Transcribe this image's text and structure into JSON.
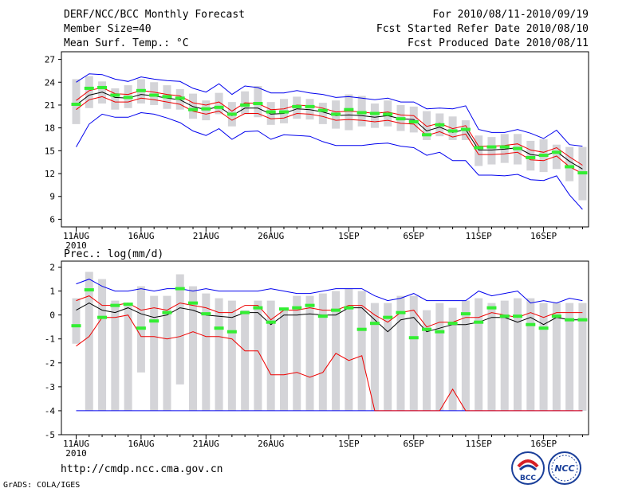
{
  "header": {
    "title": "DERF/NCC/BCC Monthly Forecast",
    "member_size": "Member Size=40",
    "variable": "Mean Surf. Temp.: °C",
    "period": "For 2010/08/11-2010/09/19",
    "fcst_started": "Fcst Started Refer Date 2010/08/10",
    "fcst_produced": "Fcst Produced Date 2010/08/11"
  },
  "footer": {
    "url": "http://cmdp.ncc.cma.gov.cn",
    "grads": "GrADS: COLA/IGES",
    "logo_left_text": "BCC",
    "logo_right_text": "NCC"
  },
  "colors": {
    "box": "#d4d4d8",
    "green": "#33ee33",
    "envelope": "#0000ee",
    "quartile": "#ee0000",
    "mean": "#000000"
  },
  "chart_data": [
    {
      "type": "box-plume",
      "title": "Mean Surf. Temp.: °C",
      "ylim": [
        5,
        28
      ],
      "yticks": [
        6,
        9,
        12,
        15,
        18,
        21,
        24,
        27
      ],
      "x_start_label": "2010",
      "xtick_labels": [
        {
          "day": 1,
          "label": "11AUG"
        },
        {
          "day": 6,
          "label": "16AUG"
        },
        {
          "day": 11,
          "label": "21AUG"
        },
        {
          "day": 16,
          "label": "26AUG"
        },
        {
          "day": 22,
          "label": "1SEP"
        },
        {
          "day": 27,
          "label": "6SEP"
        },
        {
          "day": 32,
          "label": "11SEP"
        },
        {
          "day": 37,
          "label": "16SEP"
        }
      ],
      "days": [
        1,
        2,
        3,
        4,
        5,
        6,
        7,
        8,
        9,
        10,
        11,
        12,
        13,
        14,
        15,
        16,
        17,
        18,
        19,
        20,
        21,
        22,
        23,
        24,
        25,
        26,
        27,
        28,
        29,
        30,
        31,
        32,
        33,
        34,
        35,
        36,
        37,
        38,
        39,
        40
      ],
      "box_low": [
        18.5,
        20.6,
        21.2,
        20.4,
        20.6,
        21.2,
        21.0,
        20.5,
        20.4,
        19.2,
        19.0,
        19.8,
        18.2,
        19.8,
        19.4,
        18.4,
        18.6,
        19.2,
        19.1,
        18.5,
        17.9,
        17.7,
        18.2,
        18.0,
        18.2,
        17.6,
        17.4,
        16.4,
        16.9,
        16.4,
        16.4,
        13.0,
        13.2,
        13.4,
        13.2,
        12.4,
        12.2,
        12.6,
        11.0,
        8.5
      ],
      "box_high": [
        24.4,
        24.8,
        24.1,
        23.2,
        23.6,
        24.4,
        24.0,
        23.6,
        23.1,
        22.5,
        21.6,
        22.6,
        21.4,
        22.8,
        23.5,
        21.4,
        21.8,
        22.1,
        21.8,
        21.3,
        21.6,
        22.4,
        22.2,
        21.2,
        21.6,
        21.0,
        20.8,
        20.2,
        19.9,
        19.5,
        19.0,
        17.0,
        16.8,
        17.2,
        17.2,
        16.3,
        16.5,
        15.8,
        15.5,
        15.5
      ],
      "green": [
        21.1,
        23.2,
        23.3,
        22.3,
        22.0,
        22.9,
        22.3,
        22.1,
        21.9,
        20.4,
        20.5,
        20.7,
        19.8,
        21.0,
        21.2,
        20.1,
        20.1,
        20.8,
        20.8,
        20.3,
        19.8,
        20.4,
        20.0,
        19.9,
        19.8,
        19.2,
        18.8,
        17.1,
        18.4,
        17.6,
        17.8,
        15.4,
        15.5,
        15.5,
        15.3,
        14.1,
        14.4,
        14.8,
        12.9,
        12.1
      ],
      "mean": [
        21.0,
        22.3,
        22.7,
        22.0,
        21.9,
        22.4,
        22.2,
        21.9,
        21.7,
        20.8,
        20.4,
        20.8,
        19.6,
        20.6,
        20.6,
        19.8,
        19.9,
        20.5,
        20.4,
        20.1,
        19.6,
        19.7,
        19.6,
        19.4,
        19.6,
        19.2,
        19.1,
        17.6,
        18.1,
        17.4,
        17.8,
        15.1,
        15.1,
        15.2,
        15.4,
        14.5,
        14.3,
        14.9,
        13.6,
        12.6
      ],
      "q_high": [
        21.6,
        22.9,
        23.3,
        22.5,
        22.4,
        22.9,
        22.7,
        22.4,
        22.2,
        21.3,
        21.0,
        21.4,
        20.2,
        21.3,
        21.2,
        20.4,
        20.5,
        21.0,
        20.9,
        20.6,
        20.1,
        20.2,
        20.1,
        19.9,
        20.1,
        19.7,
        19.6,
        18.2,
        18.6,
        17.9,
        18.3,
        15.6,
        15.6,
        15.7,
        15.9,
        15.1,
        14.8,
        15.4,
        14.2,
        13.1
      ],
      "q_low": [
        20.4,
        21.7,
        22.1,
        21.4,
        21.4,
        21.9,
        21.7,
        21.4,
        21.1,
        20.2,
        19.8,
        20.2,
        19.0,
        19.9,
        19.9,
        19.2,
        19.3,
        19.9,
        19.8,
        19.5,
        19.0,
        19.1,
        19.0,
        18.8,
        19.0,
        18.6,
        18.5,
        17.0,
        17.5,
        16.8,
        17.2,
        14.5,
        14.5,
        14.6,
        14.8,
        13.8,
        13.7,
        14.3,
        12.9,
        12.0
      ],
      "env_high": [
        24.0,
        25.1,
        25.0,
        24.4,
        24.1,
        24.7,
        24.4,
        24.2,
        24.1,
        23.2,
        22.7,
        23.8,
        22.4,
        23.5,
        23.3,
        22.6,
        22.6,
        22.9,
        22.6,
        22.4,
        22.0,
        22.1,
        21.9,
        21.7,
        21.9,
        21.4,
        21.4,
        20.5,
        20.6,
        20.5,
        20.9,
        17.8,
        17.4,
        17.4,
        17.8,
        17.3,
        16.6,
        17.7,
        15.8,
        15.6
      ],
      "env_low": [
        15.5,
        18.5,
        19.8,
        19.4,
        19.4,
        20.0,
        19.8,
        19.3,
        18.7,
        17.6,
        17.0,
        17.9,
        16.5,
        17.5,
        17.6,
        16.5,
        17.1,
        17.0,
        16.9,
        16.2,
        15.7,
        15.7,
        15.7,
        15.9,
        16.0,
        15.6,
        15.4,
        14.4,
        14.8,
        13.7,
        13.7,
        11.8,
        11.8,
        11.7,
        11.9,
        11.2,
        11.1,
        11.7,
        9.2,
        7.3
      ]
    },
    {
      "type": "box-plume",
      "title": "Prec.: log(mm/d)",
      "ylim": [
        -5,
        2.25
      ],
      "yticks": [
        -5,
        -4,
        -3,
        -2,
        -1,
        0,
        1,
        2
      ],
      "x_start_label": "2010",
      "xtick_labels": [
        {
          "day": 1,
          "label": "11AUG"
        },
        {
          "day": 6,
          "label": "16AUG"
        },
        {
          "day": 11,
          "label": "21AUG"
        },
        {
          "day": 16,
          "label": "26AUG"
        },
        {
          "day": 22,
          "label": "1SEP"
        },
        {
          "day": 27,
          "label": "6SEP"
        },
        {
          "day": 32,
          "label": "11SEP"
        },
        {
          "day": 37,
          "label": "16SEP"
        }
      ],
      "days": [
        1,
        2,
        3,
        4,
        5,
        6,
        7,
        8,
        9,
        10,
        11,
        12,
        13,
        14,
        15,
        16,
        17,
        18,
        19,
        20,
        21,
        22,
        23,
        24,
        25,
        26,
        27,
        28,
        29,
        30,
        31,
        32,
        33,
        34,
        35,
        36,
        37,
        38,
        39,
        40
      ],
      "box_low": [
        -1.2,
        -4.0,
        -4.0,
        -4.0,
        -4.0,
        -2.4,
        -4.0,
        -4.0,
        -2.9,
        -4.0,
        -4.0,
        -4.0,
        -4.0,
        -4.0,
        -4.0,
        -4.0,
        -4.0,
        -4.0,
        -4.0,
        -4.0,
        -4.0,
        -4.0,
        -4.0,
        -4.0,
        -4.0,
        -4.0,
        -4.0,
        -4.0,
        -4.0,
        -4.0,
        -4.0,
        -4.0,
        -4.0,
        -4.0,
        -4.0,
        -4.0,
        -4.0,
        -4.0,
        -4.0,
        -4.0
      ],
      "box_high": [
        0.7,
        1.8,
        1.5,
        0.6,
        0.5,
        1.2,
        0.8,
        0.8,
        1.7,
        1.2,
        0.9,
        0.7,
        0.6,
        0.2,
        0.6,
        0.6,
        0.2,
        0.8,
        0.8,
        0.9,
        1.0,
        1.1,
        1.0,
        0.5,
        0.5,
        0.8,
        0.8,
        0.2,
        0.5,
        0.3,
        0.6,
        0.7,
        0.5,
        0.6,
        0.7,
        0.7,
        0.5,
        0.5,
        0.5,
        0.5
      ],
      "green": [
        -0.45,
        1.05,
        -0.1,
        0.4,
        0.45,
        -0.55,
        -0.25,
        0.1,
        1.1,
        0.5,
        0.05,
        -0.55,
        -0.7,
        0.1,
        0.3,
        -0.3,
        0.25,
        0.3,
        0.4,
        -0.05,
        0.2,
        0.3,
        -0.6,
        -0.35,
        -0.1,
        0.1,
        -0.95,
        -0.6,
        -0.7,
        -0.35,
        0.05,
        -0.3,
        0.3,
        -0.05,
        -0.05,
        -0.4,
        -0.55,
        -0.05,
        -0.2,
        -0.2
      ],
      "mean": [
        0.2,
        0.5,
        0.2,
        0.1,
        0.3,
        0.05,
        -0.1,
        0.0,
        0.3,
        0.2,
        0.0,
        -0.05,
        -0.1,
        0.1,
        0.1,
        -0.4,
        0.0,
        0.0,
        0.05,
        0.0,
        0.0,
        0.3,
        0.3,
        -0.2,
        -0.7,
        -0.2,
        -0.1,
        -0.7,
        -0.55,
        -0.4,
        -0.4,
        -0.3,
        -0.1,
        -0.1,
        -0.3,
        -0.1,
        -0.4,
        -0.1,
        -0.2,
        -0.2
      ],
      "q_high": [
        0.6,
        0.8,
        0.4,
        0.4,
        0.5,
        0.2,
        0.3,
        0.2,
        0.5,
        0.4,
        0.3,
        0.1,
        0.1,
        0.4,
        0.4,
        -0.2,
        0.2,
        0.2,
        0.3,
        0.2,
        0.2,
        0.4,
        0.4,
        0.0,
        -0.3,
        0.1,
        0.2,
        -0.5,
        -0.3,
        -0.3,
        -0.1,
        -0.1,
        0.1,
        0.0,
        -0.1,
        0.1,
        -0.1,
        0.1,
        0.1,
        0.1
      ],
      "q_low": [
        -1.3,
        -0.9,
        -0.1,
        -0.1,
        0.0,
        -0.9,
        -0.9,
        -1.0,
        -0.9,
        -0.7,
        -0.9,
        -0.9,
        -1.0,
        -1.5,
        -1.5,
        -2.5,
        -2.5,
        -2.4,
        -2.6,
        -2.4,
        -1.6,
        -1.9,
        -1.7,
        -4.0,
        -4.0,
        -4.0,
        -4.0,
        -4.0,
        -4.0,
        -3.1,
        -4.0,
        -4.0,
        -4.0,
        -4.0,
        -4.0,
        -4.0,
        -4.0,
        -4.0,
        -4.0,
        -4.0
      ],
      "env_high": [
        1.3,
        1.5,
        1.2,
        1.0,
        1.0,
        1.1,
        1.0,
        1.1,
        1.1,
        1.0,
        1.1,
        1.0,
        1.0,
        1.0,
        1.0,
        1.1,
        1.0,
        0.9,
        0.9,
        1.0,
        1.1,
        1.1,
        1.1,
        0.8,
        0.6,
        0.7,
        0.9,
        0.6,
        0.6,
        0.6,
        0.6,
        1.0,
        0.8,
        0.9,
        1.0,
        0.5,
        0.6,
        0.5,
        0.7,
        0.6
      ],
      "env_low": [
        -4.0,
        -4.0,
        -4.0,
        -4.0,
        -4.0,
        -4.0,
        -4.0,
        -4.0,
        -4.0,
        -4.0,
        -4.0,
        -4.0,
        -4.0,
        -4.0,
        -4.0,
        -4.0,
        -4.0,
        -4.0,
        -4.0,
        -4.0,
        -4.0,
        -4.0,
        -4.0,
        -4.0,
        -4.0,
        -4.0,
        -4.0,
        -4.0,
        -4.0,
        -4.0,
        -4.0,
        -4.0,
        -4.0,
        -4.0,
        -4.0,
        -4.0,
        -4.0,
        -4.0,
        -4.0,
        -4.0
      ]
    }
  ]
}
